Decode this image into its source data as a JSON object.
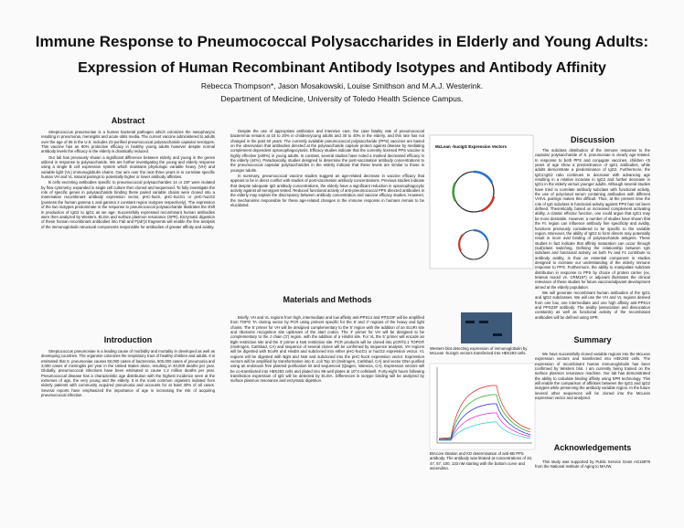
{
  "header": {
    "title": "Immune Response to Pneumococcal Polysaccharides in Elderly and Young Adults:",
    "subtitle": "Expression of Human Recombinant Antibody Isotypes and Antibody Affinity",
    "authors": "Rebecca Thompson*, Jason Mosakowski, Louise Smithson and M.A.J. Westerink.",
    "affiliation": "Department of Medicine, University of Toledo Health Science Campus."
  },
  "abstract": {
    "heading": "Abstract",
    "paragraphs": [
      "Streptococcus pneumoniae is a human bacterial pathogen which colonizes the nasopharynx resulting in pneumonia, meningitis and acute otitis media. The current vaccine administered to adults over the age of 65 in the U.S. includes 23 purified pneumococcal polysaccharide capsular serotypes. This vaccine has an 80% protective efficacy in healthy young adults however despite normal antibody levels the efficacy in the elderly is drastically reduced.",
      "Our lab has previously shown a significant difference between elderly and young in the genes utilized in response to polysaccharide. We are further investigating the young and elderly response using a single B cell expression system which maintains physiologic variable heavy (VH) and variable light (VL) immunoglobulin chains. Our aim over the next three years is to correlate specific human VH and VL natural pairings to potentially higher or lower antibody affinities.",
      "B cells secreting antibodies specific to pneumococcal polysaccharides 14 or 23F were isolated by flow cytometry, expanded in single cell culture then cloned and sequenced. To fully investigate the role of specific genes in polysaccharide binding these paired variable chains were cloned into a mammalian recombinant antibody expression vector, pHC-hucK, pHC-hucG1 or pHC-hucG2 (possess the human gamma 1 and gamma 2 constant region isotypes respectively). The expression of the two isotypes predominate in the response to pneumococcal polysaccharide illustrates the shift in production of IgG2 to IgG1 as we age. Successfully expressed recombinant human antibodies were then analyzed by Western, ELISA and surface plasmon resonance (SPR). Enzymatic digestion of these human recombinant antibodies into Fab and F(ab')2 fragments will enable the fine analysis of the immunoglobulin structural components responsible for antibodies of greater affinity and avidity."
    ]
  },
  "introduction": {
    "heading": "Introduction",
    "paragraphs": [
      "Streptococcus pneumoniae is a leading cause of morbidity and mortality in developed as well as developing countries. The organism colonizes the respiratory tract of healthy children and adults. It is estimated that S. pneumoniae causes 50,000 cases of bacteremia, 500,000 cases of pneumonia and 3,000 cases of meningitis per year in the United States alone, resulting in 40,000 deaths per year. Globally, pneumococcal infections have been estimated to cause 1.2 million deaths per year. Pneumococcal disease has a characteristic age distribution with the highest incidence seen at the extremes of age, the very young and the elderly. It is the most common organism isolated from elderly patients with community acquired pneumonia and accounts for at least 30% of all cases. Several reports have emphasized the importance of age in increasing the risk of acquiring pneumococcal infection."
    ]
  },
  "middle": {
    "paragraphs": [
      "Despite the use of appropriate antibiotics and intensive care, the case fatality rate of pneumococcal bacteremia remains at 15 to 20% in children/young adults and 30 to 40% in the elderly, and this rate has not changed in the past 40 years. The currently available pneumococcal polysaccharide (PPS) vaccines are based on the observation that antibodies directed at the polysaccharide capsule protect against disease by mediating complement dependent opsonophagocytosis. Efficacy studies indicate that the currently licensed PPS vaccine is highly effective (≥80%) in young adults. In contrast, several studies have noted a marked decreased efficacy in the elderly (44%). Paradoxically, studies designed to determine the post-vaccination antibody concentrations to the pneumococcal capsular polysaccharides in the elderly indicate that these levels are similar to those in younger adults.",
      "In summary, pneumococcal vaccine studies suggest an age-related decrease in vaccine efficacy that appears to be in direct conflict with studies of post-vaccination antibody concentrations. Previous studies indicate that despite adequate IgG antibody concentrations, the elderly have a significant reduction in opsonophagocytic activity against all serotypes tested. Reduced functional activity of anti-pneumococcal PPS directed antibodies in the elderly may explain the discrepancy between antibody concentration and vaccine efficacy studies. However, the mechanisms responsible for these age-related changes in the immune response in humans remain to be elucidated."
    ]
  },
  "methods": {
    "heading": "Materials and Methods",
    "paragraphs": [
      "Briefly, VH and VL regions from high, intermediate and low affinity anti-PPS14 and PPS23F will be amplified from TOPO TA cloning vector by PCR using primers specific for the 5' and 3' regions of the heavy and light chains. The 5' primer for VH will be designed complementary to the 5' region with the addition of an EcoRI site and ribosome recognition site upstream of the start codon. The 3' primer for VH will be designed to be complementary to the J chain (3') region, with the addition of a HindIII site. For VL the 5' primer will encode an BglII restriction site and the 3' primer a NotI restriction site. PCR products will be cloned into pCR®2.1 TOPO® (Invitrogen, Carlsbad, CA) and sequence of several clones will be confirmed by sequence analysis. VH regions will be digested with EcoRI and HindIII and subcloned into either pHC-hucG1 or hucG2 expression vector. VL regions will be digested with BglII and NotI and subcloned into the pHC-hucK expression vector. Expression vectors will be amplified by transformation into E. coli Top 10 (Invitrogen, Carlsbad, CA) and vector DNA purified using an endotoxin free plasmid purification kit and sequenced (Qiagen, Valencia, CA). Expression vectors will be co-transfected into HEK293 cells and plated into 96 well plates at 10^4 cells/well. Forty-eight hours following transfection expression of IgG will be detected by ELISA. Differences in isotype binding will be analyzed by surface plasmon resonance and enzymatic digestion."
    ]
  },
  "figures": {
    "vector_title": "McLean -hucIgG Expression Vectors",
    "blot_caption": "Western blot detecting expression of immunoglobulin by McLean -hucIgG vectors transfected into HEK293 cells.",
    "spr_caption": "BIAcore titration and KD determination of anti-6B PPS antibody. The antibody was titrated at concentrations of 33, 47, 67, 100, 133 nM starting with the bottom curve and ascending."
  },
  "discussion": {
    "heading": "Discussion",
    "paragraphs": [
      "The subclass distribution of the immune response to the capsular polysaccharide of S. pneumoniae is clearly age-related. In response to both PPS and conjugate vaccines, children <5 years of age show a predominance of IgG1 antibodies, while adults demonstrate a predominance of IgG2. Furthermore, the IgG1:IgG2 ratio continues to decrease with advancing age resulting in a relative increase in IgG2 and further decrease in IgG1 in the elderly versus younger adults. Although several studies have tried to correlate antibody subclass with functional activity, the use of polyclonal serum containing antibodies with different VH/VL pairings makes this difficult. Thus, at the present time the role of IgG subclass in functional activity against PPS has not been defined. Theoretically, based on increased complement activating ability, a classic effector function, one could argue that IgG1 may be more desirable. However, a number of studies have shown that the Fc region can influence antibody fine specificity and avidity, functions previously considered to be specific to the variable region. Moreover, the ability of IgG2 to form dimers may potentially result in more avid binding of polysaccharide antigens. These studies in fact indicate that affinity maturation can occur through (sub)class switching. Defining the relationship between IgG subclass and functional activity, as both Fv and Fc contribute to antibody avidity, is thus an essential component in studies designed to increase our understanding of the elderly immune response to PPS. Furthermore, the ability to manipulate subclass distribution in response to PPS by choice of protein carrier (ex. tetanus toxoid vs. CRM197) or adjuvant illustrates the clinical relevance of these studies for future vaccine/adjuvant development aimed at the elderly population.",
      "We will generate recombinant human antibodies of the IgG1 and IgG2 subclasses. We will use the VH and VL regions derived from one low, one intermediate and one high affinity anti-PPS14 and PPS23F antibody. The avidity (association and dissociation constants) as well as functional activity of the recombinant antibodies will be defined using SPR."
    ]
  },
  "summary": {
    "heading": "Summary",
    "paragraphs": [
      "We have successfully cloned variable regions into the McLean expression vectors and transfected into HEK293 cells. The expression of recombinant human immunoglobulin has been confirmed by Western blot. I am currently being trained on the surface plasmon resonance machine. Our lab has demonstrated the ability to calculate binding affinity using SPR technology. This will enable the comparison of affinities between the IgG1 and IgG2 isotypes while preserving the antibody variable region. In the future several other sequences will be cloned into the McLean expression vector and analyzed."
    ]
  },
  "acknowledgements": {
    "heading": "Acknowledgements",
    "paragraphs": [
      "This study was supported by Public Service Grant AG15978 from the National Institute of Aging to MAJW."
    ]
  }
}
